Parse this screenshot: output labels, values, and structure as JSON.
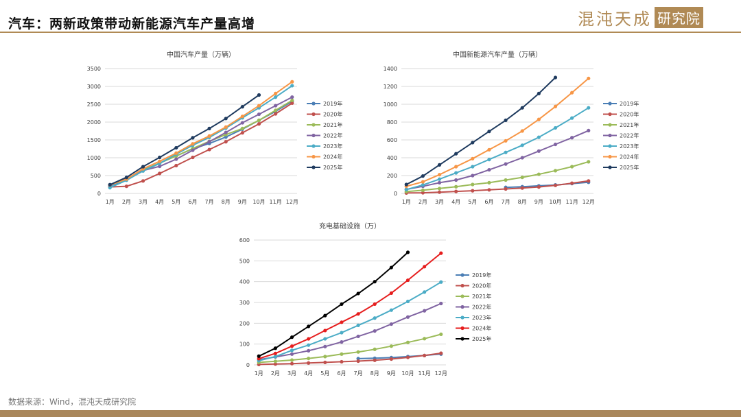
{
  "header": {
    "title": "汽车：两新政策带动新能源汽车产量高增",
    "logo_main": "混沌天成",
    "logo_box": "研究院"
  },
  "footer": {
    "source": "数据来源：Wind，混沌天成研究院"
  },
  "chart_data": [
    {
      "type": "line",
      "title": "中国汽车产量（万辆）",
      "categories": [
        "1月",
        "2月",
        "3月",
        "4月",
        "5月",
        "6月",
        "7月",
        "8月",
        "9月",
        "10月",
        "11月",
        "12月"
      ],
      "ylim": [
        0,
        3500
      ],
      "yticks": [
        0,
        500,
        1000,
        1500,
        2000,
        2500,
        3000,
        3500
      ],
      "grid": true,
      "legend": "right",
      "series": [
        {
          "name": "2019年",
          "color": "#4a7eb5",
          "values": [
            210,
            390,
            650,
            850,
            1050,
            1250,
            1400,
            1580,
            1800,
            2050,
            2300,
            2580
          ]
        },
        {
          "name": "2020年",
          "color": "#c0504d",
          "values": [
            180,
            200,
            350,
            560,
            780,
            1010,
            1230,
            1450,
            1700,
            1950,
            2230,
            2530
          ]
        },
        {
          "name": "2021年",
          "color": "#9bbb59",
          "values": [
            240,
            390,
            640,
            850,
            1050,
            1260,
            1460,
            1650,
            1820,
            2050,
            2330,
            2610
          ]
        },
        {
          "name": "2022年",
          "color": "#8064a2",
          "values": [
            240,
            420,
            640,
            760,
            960,
            1210,
            1450,
            1710,
            1980,
            2220,
            2460,
            2700
          ]
        },
        {
          "name": "2023年",
          "color": "#4bacc6",
          "values": [
            160,
            370,
            630,
            840,
            1100,
            1350,
            1570,
            1830,
            2120,
            2400,
            2700,
            3020
          ]
        },
        {
          "name": "2024年",
          "color": "#f79646",
          "values": [
            240,
            400,
            690,
            900,
            1130,
            1390,
            1610,
            1860,
            2160,
            2460,
            2800,
            3130
          ]
        },
        {
          "name": "2025年",
          "color": "#1f3b5f",
          "values": [
            245,
            450,
            750,
            1010,
            1280,
            1560,
            1820,
            2100,
            2430,
            2760,
            null,
            null
          ]
        }
      ]
    },
    {
      "type": "line",
      "title": "中国新能源汽车产量（万辆）",
      "categories": [
        "1月",
        "2月",
        "3月",
        "4月",
        "5月",
        "6月",
        "7月",
        "8月",
        "9月",
        "10月",
        "11月",
        "12月"
      ],
      "ylim": [
        0,
        1400
      ],
      "yticks": [
        0,
        200,
        400,
        600,
        800,
        1000,
        1200,
        1400
      ],
      "grid": true,
      "legend": "right",
      "series": [
        {
          "name": "2019年",
          "color": "#4a7eb5",
          "values": [
            null,
            null,
            null,
            null,
            null,
            null,
            68,
            75,
            85,
            95,
            110,
            125
          ]
        },
        {
          "name": "2020年",
          "color": "#c0504d",
          "values": [
            5,
            7,
            14,
            22,
            30,
            40,
            50,
            60,
            72,
            90,
            115,
            140
          ]
        },
        {
          "name": "2021年",
          "color": "#9bbb59",
          "values": [
            20,
            35,
            55,
            75,
            100,
            120,
            150,
            180,
            215,
            255,
            300,
            355
          ]
        },
        {
          "name": "2022年",
          "color": "#8064a2",
          "values": [
            45,
            80,
            120,
            150,
            200,
            265,
            330,
            400,
            475,
            550,
            625,
            705
          ]
        },
        {
          "name": "2023年",
          "color": "#4bacc6",
          "values": [
            42,
            95,
            160,
            230,
            300,
            380,
            460,
            540,
            630,
            735,
            845,
            960
          ]
        },
        {
          "name": "2024年",
          "color": "#f79646",
          "values": [
            80,
            130,
            210,
            300,
            390,
            490,
            590,
            700,
            830,
            975,
            1130,
            1290
          ]
        },
        {
          "name": "2025年",
          "color": "#1f3b5f",
          "values": [
            100,
            195,
            320,
            445,
            570,
            695,
            820,
            960,
            1120,
            1300,
            null,
            null
          ]
        }
      ]
    },
    {
      "type": "line",
      "title": "充电基础设施（万）",
      "categories": [
        "1月",
        "2月",
        "3月",
        "4月",
        "5月",
        "6月",
        "7月",
        "8月",
        "9月",
        "10月",
        "11月",
        "12月"
      ],
      "ylim": [
        0,
        600
      ],
      "yticks": [
        0,
        100,
        200,
        300,
        400,
        500,
        600
      ],
      "grid": true,
      "legend": "right",
      "series": [
        {
          "name": "2019年",
          "color": "#4a7eb5",
          "values": [
            null,
            null,
            null,
            null,
            null,
            null,
            30,
            32,
            35,
            40,
            45,
            52
          ]
        },
        {
          "name": "2020年",
          "color": "#c0504d",
          "values": [
            2,
            4,
            6,
            9,
            12,
            15,
            18,
            22,
            28,
            36,
            45,
            56
          ]
        },
        {
          "name": "2021年",
          "color": "#9bbb59",
          "values": [
            12,
            17,
            23,
            31,
            40,
            52,
            62,
            75,
            90,
            108,
            126,
            147
          ]
        },
        {
          "name": "2022年",
          "color": "#8064a2",
          "values": [
            25,
            38,
            52,
            68,
            88,
            110,
            137,
            163,
            196,
            230,
            260,
            295
          ]
        },
        {
          "name": "2023年",
          "color": "#4bacc6",
          "values": [
            20,
            40,
            70,
            95,
            125,
            155,
            190,
            225,
            263,
            305,
            350,
            398
          ]
        },
        {
          "name": "2024年",
          "color": "#e61e1e",
          "values": [
            30,
            55,
            90,
            125,
            165,
            205,
            245,
            292,
            345,
            407,
            472,
            537
          ]
        },
        {
          "name": "2025年",
          "color": "#000000",
          "values": [
            42,
            80,
            133,
            185,
            237,
            292,
            343,
            400,
            468,
            541,
            null,
            null
          ]
        }
      ]
    }
  ]
}
